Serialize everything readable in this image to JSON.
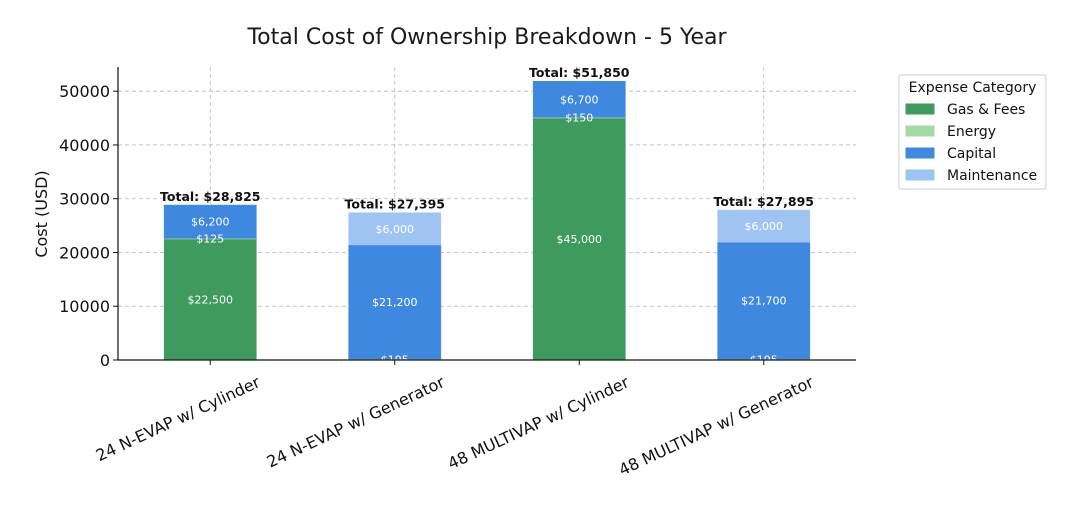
{
  "chart_data": {
    "type": "bar",
    "stacked": true,
    "title": "Total Cost of Ownership Breakdown - 5 Year",
    "xlabel": "",
    "ylabel": "Cost (USD)",
    "ylim": [
      0,
      54500
    ],
    "yticks": [
      0,
      10000,
      20000,
      30000,
      40000,
      50000
    ],
    "grid": true,
    "legend": {
      "title": "Expense Category",
      "position": "top-right, outside"
    },
    "categories": [
      "24 N-EVAP w/ Cylinder",
      "24 N-EVAP w/ Generator",
      "48 MULTIVAP w/ Cylinder",
      "48 MULTIVAP w/ Generator"
    ],
    "series": [
      {
        "name": "Gas & Fees",
        "color": "#3f9a5d",
        "values": [
          22500,
          0,
          45000,
          0
        ],
        "labels": [
          "$22,500",
          "",
          "$45,000",
          ""
        ]
      },
      {
        "name": "Energy",
        "color": "#a3d9a5",
        "values": [
          125,
          195,
          150,
          195
        ],
        "labels": [
          "$125",
          "$195",
          "$150",
          "$195"
        ]
      },
      {
        "name": "Capital",
        "color": "#3f88e0",
        "values": [
          6200,
          21200,
          6700,
          21700
        ],
        "labels": [
          "$6,200",
          "$21,200",
          "$6,700",
          "$21,700"
        ]
      },
      {
        "name": "Maintenance",
        "color": "#9fc3f3",
        "values": [
          0,
          6000,
          0,
          6000
        ],
        "labels": [
          "",
          "$6,000",
          "",
          "$6,000"
        ]
      }
    ],
    "totals": [
      "Total: $28,825",
      "Total: $27,395",
      "Total: $51,850",
      "Total: $27,895"
    ]
  }
}
